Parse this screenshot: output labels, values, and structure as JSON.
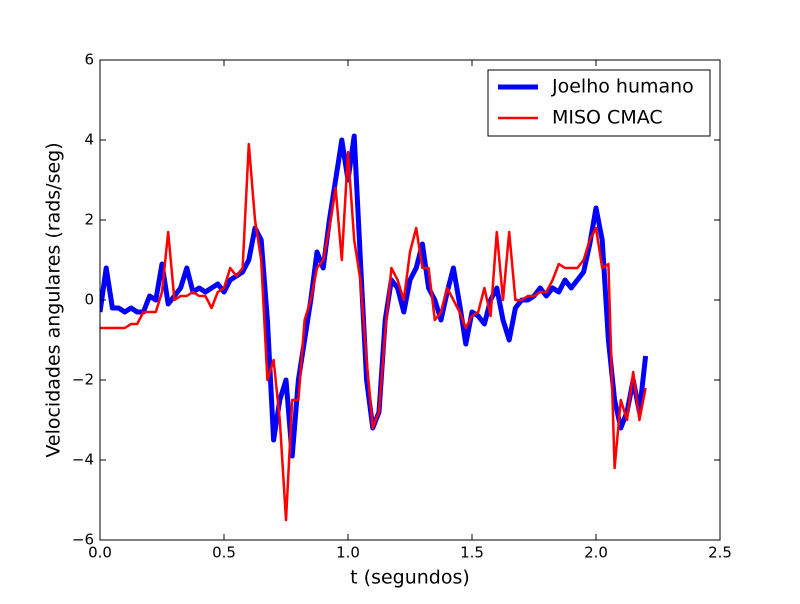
{
  "chart_data": {
    "type": "line",
    "xlabel": "t (segundos)",
    "ylabel": "Velocidades angulares (rads/seg)",
    "x": [
      0,
      0.025,
      0.05,
      0.075,
      0.1,
      0.125,
      0.15,
      0.175,
      0.2,
      0.225,
      0.25,
      0.275,
      0.3,
      0.325,
      0.35,
      0.375,
      0.4,
      0.425,
      0.45,
      0.475,
      0.5,
      0.525,
      0.55,
      0.575,
      0.6,
      0.625,
      0.65,
      0.675,
      0.7,
      0.725,
      0.75,
      0.775,
      0.8,
      0.825,
      0.85,
      0.875,
      0.9,
      0.925,
      0.95,
      0.975,
      1.0,
      1.025,
      1.05,
      1.075,
      1.1,
      1.125,
      1.15,
      1.175,
      1.2,
      1.225,
      1.25,
      1.275,
      1.3,
      1.325,
      1.35,
      1.375,
      1.4,
      1.425,
      1.45,
      1.475,
      1.5,
      1.525,
      1.55,
      1.575,
      1.6,
      1.625,
      1.65,
      1.675,
      1.7,
      1.725,
      1.75,
      1.775,
      1.8,
      1.825,
      1.85,
      1.875,
      1.9,
      1.925,
      1.95,
      1.975,
      2.0,
      2.025,
      2.05,
      2.075,
      2.1,
      2.125,
      2.15,
      2.175,
      2.2
    ],
    "series": [
      {
        "name": "Joelho humano",
        "color": "#0000ff",
        "width": 5,
        "values": [
          -0.3,
          0.8,
          -0.2,
          -0.2,
          -0.3,
          -0.2,
          -0.3,
          -0.3,
          0.1,
          0.0,
          0.9,
          -0.1,
          0.1,
          0.3,
          0.8,
          0.2,
          0.3,
          0.2,
          0.3,
          0.4,
          0.2,
          0.5,
          0.6,
          0.7,
          1.0,
          1.8,
          1.5,
          -0.5,
          -3.5,
          -2.5,
          -2.0,
          -3.9,
          -2.0,
          -1.0,
          0.0,
          1.2,
          0.8,
          2.0,
          3.0,
          4.0,
          3.0,
          4.1,
          1.0,
          -2.0,
          -3.2,
          -2.8,
          -0.5,
          0.5,
          0.3,
          -0.3,
          0.5,
          0.8,
          1.4,
          0.3,
          0.0,
          -0.5,
          0.2,
          0.8,
          -0.1,
          -1.1,
          -0.3,
          -0.4,
          -0.6,
          0.0,
          0.3,
          -0.5,
          -1.0,
          -0.2,
          0.0,
          0.0,
          0.1,
          0.3,
          0.1,
          0.3,
          0.2,
          0.5,
          0.3,
          0.5,
          0.7,
          1.4,
          2.3,
          1.5,
          -1.0,
          -2.5,
          -3.2,
          -2.8,
          -2.0,
          -2.8,
          -1.4
        ]
      },
      {
        "name": "MISO CMAC",
        "color": "#ff0000",
        "width": 2.5,
        "values": [
          -0.7,
          -0.7,
          -0.7,
          -0.7,
          -0.7,
          -0.6,
          -0.6,
          -0.3,
          -0.3,
          -0.3,
          0.2,
          1.7,
          0.0,
          0.1,
          0.1,
          0.2,
          0.1,
          0.1,
          -0.2,
          0.2,
          0.3,
          0.8,
          0.6,
          0.8,
          3.9,
          2.0,
          1.0,
          -2.0,
          -1.5,
          -3.0,
          -5.5,
          -2.5,
          -2.5,
          -0.5,
          0.0,
          0.8,
          1.0,
          1.8,
          2.8,
          1.0,
          3.7,
          1.5,
          0.5,
          -1.5,
          -3.2,
          -2.8,
          -0.8,
          0.8,
          0.5,
          0.0,
          1.2,
          1.8,
          0.8,
          0.8,
          -0.5,
          -0.3,
          0.3,
          0.0,
          -0.3,
          -0.7,
          -0.4,
          -0.3,
          0.3,
          -0.4,
          1.7,
          0.0,
          1.7,
          0.0,
          0.0,
          0.1,
          0.1,
          0.2,
          0.2,
          0.5,
          0.9,
          0.8,
          0.8,
          0.8,
          1.0,
          1.5,
          1.8,
          0.8,
          0.9,
          -4.2,
          -2.5,
          -3.0,
          -1.8,
          -3.0,
          -2.2
        ]
      }
    ],
    "xlim": [
      0,
      2.5
    ],
    "xticks": [
      {
        "value": 0,
        "label": "0.0"
      },
      {
        "value": 0.5,
        "label": "0.5"
      },
      {
        "value": 1,
        "label": "1.0"
      },
      {
        "value": 1.5,
        "label": "1.5"
      },
      {
        "value": 2,
        "label": "2.0"
      },
      {
        "value": 2.5,
        "label": "2.5"
      }
    ],
    "ylim": [
      -6,
      6
    ],
    "yticks": [
      {
        "value": -6,
        "label": "−6"
      },
      {
        "value": -4,
        "label": "−4"
      },
      {
        "value": -2,
        "label": "−2"
      },
      0,
      2,
      4,
      6
    ],
    "legend": "upper right",
    "grid": false
  }
}
